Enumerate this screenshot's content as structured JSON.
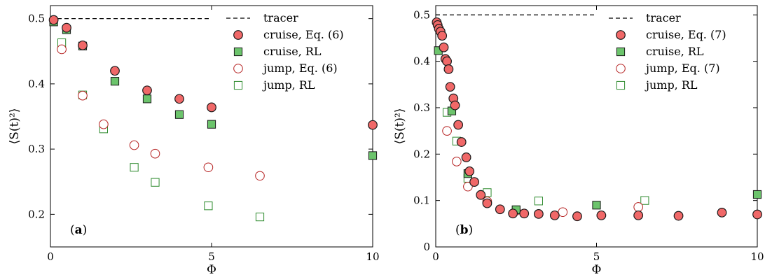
{
  "chart_data": [
    {
      "panel": "(a)",
      "panel_letter": "a",
      "type": "scatter",
      "xlabel": "Φ",
      "ylabel": "⟨S(t)²⟩",
      "xlim": [
        0,
        10
      ],
      "ylim": [
        0.15,
        0.52
      ],
      "xticks": [
        0,
        5,
        10
      ],
      "yticks": [
        0.2,
        0.3,
        0.4,
        0.5
      ],
      "grid": false,
      "legend_position": "top-right",
      "reference_line": {
        "name": "tracer",
        "y": 0.5,
        "x_range": [
          0,
          5
        ],
        "style": "dashed"
      },
      "series": [
        {
          "name": "cruise, Eq. (6)",
          "marker": "circle",
          "filled": true,
          "color": "#f06868",
          "x": [
            0.1,
            0.5,
            1.0,
            2.0,
            3.0,
            4.0,
            5.0,
            10.0
          ],
          "y": [
            0.498,
            0.486,
            0.459,
            0.42,
            0.39,
            0.377,
            0.364,
            0.337
          ]
        },
        {
          "name": "cruise, RL",
          "marker": "square",
          "filled": true,
          "color": "#6cc46c",
          "x": [
            0.1,
            0.5,
            1.0,
            2.0,
            3.0,
            4.0,
            5.0,
            10.0
          ],
          "y": [
            0.495,
            0.483,
            0.458,
            0.404,
            0.377,
            0.353,
            0.338,
            0.29
          ]
        },
        {
          "name": "jump, Eq. (6)",
          "marker": "circle",
          "filled": false,
          "color": "#b52020",
          "x": [
            0.35,
            1.0,
            1.65,
            2.6,
            3.25,
            4.9,
            6.5
          ],
          "y": [
            0.453,
            0.382,
            0.338,
            0.306,
            0.293,
            0.272,
            0.259
          ]
        },
        {
          "name": "jump, RL",
          "marker": "square",
          "filled": false,
          "color": "#2e8b2e",
          "x": [
            0.35,
            1.0,
            1.65,
            2.6,
            3.25,
            4.9,
            6.5
          ],
          "y": [
            0.463,
            0.383,
            0.331,
            0.272,
            0.249,
            0.213,
            0.196
          ]
        }
      ]
    },
    {
      "panel": "(b)",
      "panel_letter": "b",
      "type": "scatter",
      "xlabel": "Φ",
      "ylabel": "⟨S(t)²⟩",
      "xlim": [
        0,
        10
      ],
      "ylim": [
        0,
        0.52
      ],
      "xticks": [
        0,
        5,
        10
      ],
      "yticks": [
        0,
        0.1,
        0.2,
        0.3,
        0.4,
        0.5
      ],
      "grid": false,
      "legend_position": "top-right",
      "reference_line": {
        "name": "tracer",
        "y": 0.5,
        "x_range": [
          0,
          5
        ],
        "style": "dashed"
      },
      "series": [
        {
          "name": "cruise, Eq. (7)",
          "marker": "circle",
          "filled": true,
          "color": "#f06868",
          "x": [
            0.03,
            0.06,
            0.1,
            0.15,
            0.2,
            0.25,
            0.3,
            0.35,
            0.4,
            0.45,
            0.55,
            0.6,
            0.7,
            0.8,
            0.95,
            1.05,
            1.2,
            1.4,
            1.6,
            2.0,
            2.4,
            2.75,
            3.2,
            3.7,
            4.4,
            5.15,
            6.3,
            7.55,
            8.9,
            10.0
          ],
          "y": [
            0.484,
            0.478,
            0.47,
            0.464,
            0.455,
            0.43,
            0.405,
            0.4,
            0.383,
            0.345,
            0.32,
            0.305,
            0.263,
            0.226,
            0.193,
            0.163,
            0.14,
            0.112,
            0.094,
            0.081,
            0.072,
            0.072,
            0.071,
            0.068,
            0.066,
            0.068,
            0.068,
            0.067,
            0.074,
            0.07
          ]
        },
        {
          "name": "cruise, RL",
          "marker": "square",
          "filled": true,
          "color": "#6cc46c",
          "x": [
            0.08,
            0.5,
            1.0,
            2.5,
            5.0,
            10.0
          ],
          "y": [
            0.423,
            0.293,
            0.158,
            0.08,
            0.09,
            0.113
          ]
        },
        {
          "name": "jump, Eq. (7)",
          "marker": "circle",
          "filled": false,
          "color": "#b52020",
          "x": [
            0.35,
            0.65,
            1.0,
            1.6,
            2.5,
            3.95,
            6.3
          ],
          "y": [
            0.25,
            0.184,
            0.13,
            0.098,
            0.078,
            0.075,
            0.086
          ]
        },
        {
          "name": "jump, RL",
          "marker": "square",
          "filled": false,
          "color": "#2e8b2e",
          "x": [
            0.35,
            0.65,
            1.0,
            1.6,
            2.5,
            3.2,
            6.5
          ],
          "y": [
            0.29,
            0.228,
            0.148,
            0.117,
            0.08,
            0.099,
            0.1
          ]
        }
      ]
    }
  ]
}
